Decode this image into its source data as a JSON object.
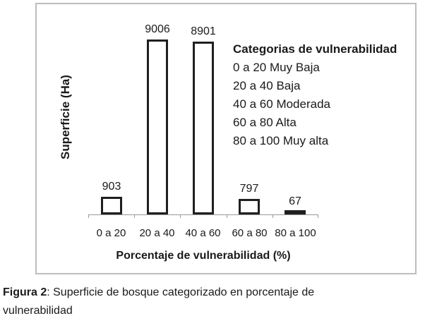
{
  "figure": {
    "caption_label": "Figura 2",
    "caption_text": ": Superficie de bosque categorizado en porcentaje de vulnerabilidad"
  },
  "chart_data": {
    "type": "bar",
    "title": "",
    "categories": [
      "0 a 20",
      "20 a 40",
      "40 a 60",
      "60 a 80",
      "80 a 100"
    ],
    "values": [
      903,
      9006,
      8901,
      797,
      67
    ],
    "xlabel": "Porcentaje de vulnerabilidad (%)",
    "ylabel": "Superficie (Ha)",
    "ylim": [
      0,
      9500
    ],
    "grid": false,
    "data_labels": true,
    "bar_fill": "#ffffff",
    "bar_border": "#1f1f1f",
    "axis_color": "#999999",
    "frame_border_color": "#bdbdbd",
    "legend": {
      "position": "inside-right",
      "title": "Categorias de vulnerabilidad",
      "entries": [
        "0 a 20 Muy Baja",
        "20 a 40 Baja",
        "40 a 60 Moderada",
        "60 a 80 Alta",
        "80 a 100 Muy alta"
      ]
    }
  }
}
